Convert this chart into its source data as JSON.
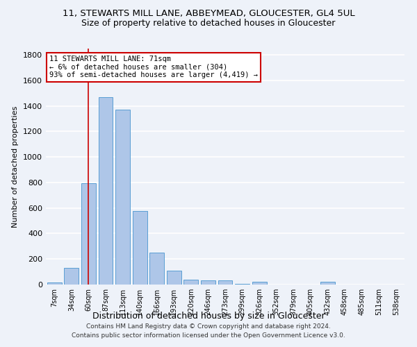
{
  "title_line1": "11, STEWARTS MILL LANE, ABBEYMEAD, GLOUCESTER, GL4 5UL",
  "title_line2": "Size of property relative to detached houses in Gloucester",
  "xlabel": "Distribution of detached houses by size in Gloucester",
  "ylabel": "Number of detached properties",
  "categories": [
    "7sqm",
    "34sqm",
    "60sqm",
    "87sqm",
    "113sqm",
    "140sqm",
    "166sqm",
    "193sqm",
    "220sqm",
    "246sqm",
    "273sqm",
    "299sqm",
    "326sqm",
    "352sqm",
    "379sqm",
    "405sqm",
    "432sqm",
    "458sqm",
    "485sqm",
    "511sqm",
    "538sqm"
  ],
  "values": [
    15,
    130,
    795,
    1470,
    1370,
    575,
    250,
    110,
    38,
    30,
    30,
    5,
    20,
    0,
    0,
    0,
    20,
    0,
    0,
    0,
    0
  ],
  "bar_color": "#aec6e8",
  "bar_edge_color": "#5a9fd4",
  "property_line_bin": 2,
  "annotation_text": "11 STEWARTS MILL LANE: 71sqm\n← 6% of detached houses are smaller (304)\n93% of semi-detached houses are larger (4,419) →",
  "annotation_box_color": "#ffffff",
  "annotation_box_edge": "#cc0000",
  "vline_color": "#cc0000",
  "ylim": [
    0,
    1850
  ],
  "yticks": [
    0,
    200,
    400,
    600,
    800,
    1000,
    1200,
    1400,
    1600,
    1800
  ],
  "footer_line1": "Contains HM Land Registry data © Crown copyright and database right 2024.",
  "footer_line2": "Contains public sector information licensed under the Open Government Licence v3.0.",
  "bg_color": "#eef2f9",
  "grid_color": "#ffffff",
  "title1_fontsize": 9.5,
  "title2_fontsize": 9,
  "annotation_fontsize": 7.5,
  "ylabel_fontsize": 8,
  "xlabel_fontsize": 9,
  "footer_fontsize": 6.5,
  "xtick_fontsize": 7,
  "ytick_fontsize": 8
}
